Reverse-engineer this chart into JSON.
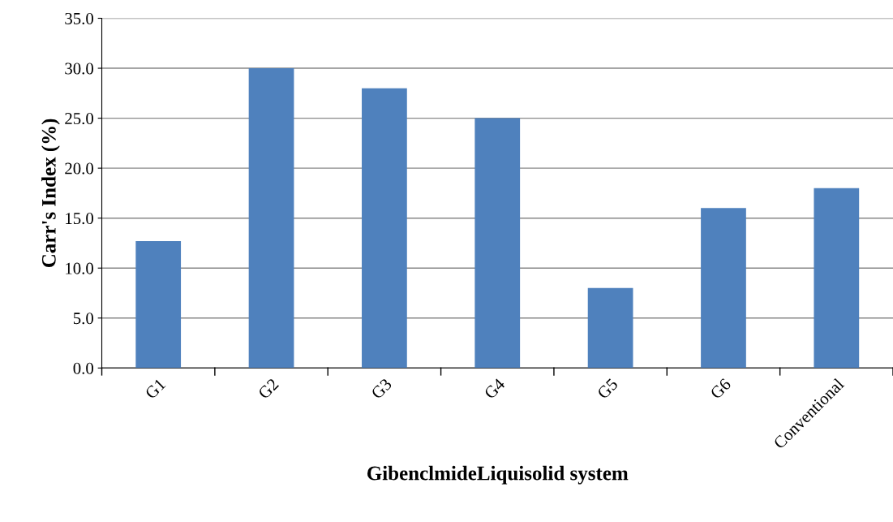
{
  "chart_data": {
    "type": "bar",
    "xlabel": "GibenclmideLiquisolid system",
    "ylabel": "Carr's Index (%)",
    "categories": [
      "G1",
      "G2",
      "G3",
      "G4",
      "G5",
      "G6",
      "Conventional"
    ],
    "values": [
      12.7,
      30.0,
      28.0,
      25.0,
      8.0,
      16.0,
      18.0
    ],
    "color": "#4f81bd",
    "ylim": [
      0,
      35
    ],
    "yticks": [
      {
        "value": 0,
        "label": "0.0"
      },
      {
        "value": 5,
        "label": "5.0"
      },
      {
        "value": 10,
        "label": "10.0"
      },
      {
        "value": 15,
        "label": "15.0"
      },
      {
        "value": 20,
        "label": "20.0"
      },
      {
        "value": 25,
        "label": "25.0"
      },
      {
        "value": 30,
        "label": "30.0"
      },
      {
        "value": 35,
        "label": "35.0"
      }
    ],
    "grid": "y",
    "legend": false
  }
}
